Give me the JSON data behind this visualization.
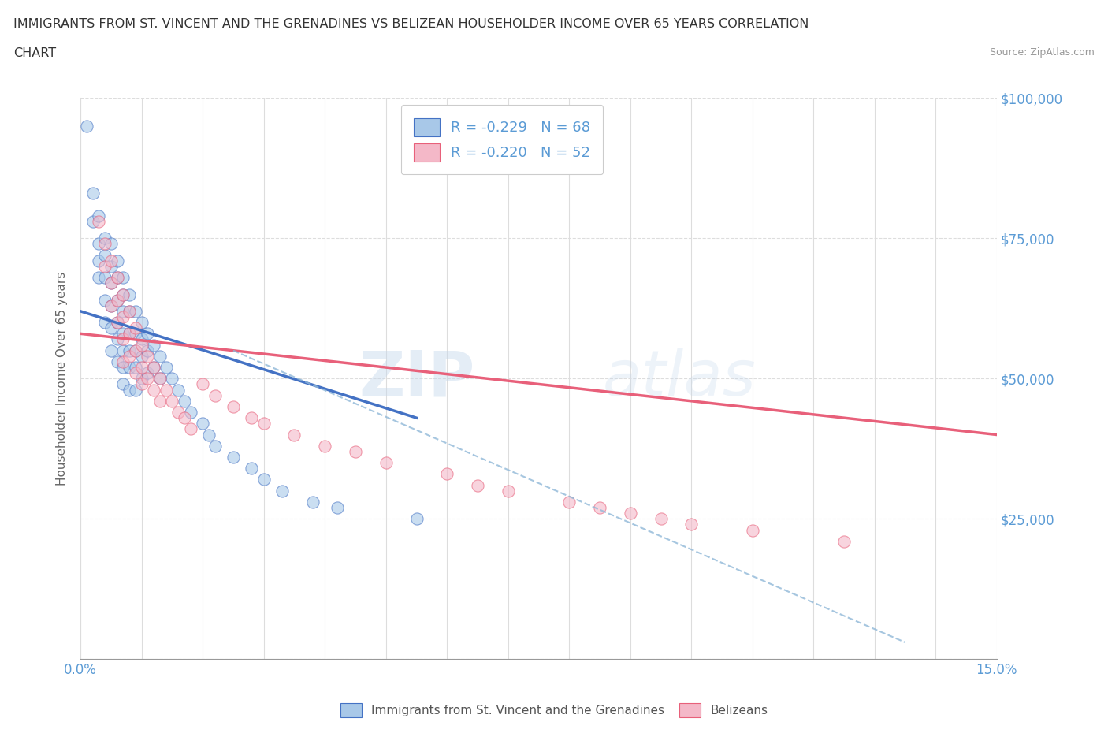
{
  "title_line1": "IMMIGRANTS FROM ST. VINCENT AND THE GRENADINES VS BELIZEAN HOUSEHOLDER INCOME OVER 65 YEARS CORRELATION",
  "title_line2": "CHART",
  "source_text": "Source: ZipAtlas.com",
  "ylabel": "Householder Income Over 65 years",
  "x_min": 0.0,
  "x_max": 0.15,
  "y_min": 0,
  "y_max": 100000,
  "y_ticks": [
    0,
    25000,
    50000,
    75000,
    100000
  ],
  "y_tick_labels_right": [
    "",
    "$25,000",
    "$50,000",
    "$75,000",
    "$100,000"
  ],
  "color_blue": "#a8c8e8",
  "color_blue_dark": "#4472c4",
  "color_pink": "#f4b8c8",
  "color_pink_dark": "#e8607a",
  "color_label_blue": "#5b9bd5",
  "watermark_zip": "ZIP",
  "watermark_atlas": "atlas",
  "blue_scatter_x": [
    0.001,
    0.002,
    0.002,
    0.003,
    0.003,
    0.003,
    0.003,
    0.004,
    0.004,
    0.004,
    0.004,
    0.004,
    0.005,
    0.005,
    0.005,
    0.005,
    0.005,
    0.005,
    0.006,
    0.006,
    0.006,
    0.006,
    0.006,
    0.006,
    0.007,
    0.007,
    0.007,
    0.007,
    0.007,
    0.007,
    0.007,
    0.008,
    0.008,
    0.008,
    0.008,
    0.008,
    0.008,
    0.009,
    0.009,
    0.009,
    0.009,
    0.009,
    0.01,
    0.01,
    0.01,
    0.01,
    0.011,
    0.011,
    0.011,
    0.012,
    0.012,
    0.013,
    0.013,
    0.014,
    0.015,
    0.016,
    0.017,
    0.018,
    0.02,
    0.021,
    0.022,
    0.025,
    0.028,
    0.03,
    0.033,
    0.038,
    0.042,
    0.055
  ],
  "blue_scatter_y": [
    95000,
    83000,
    78000,
    79000,
    74000,
    71000,
    68000,
    75000,
    72000,
    68000,
    64000,
    60000,
    74000,
    70000,
    67000,
    63000,
    59000,
    55000,
    71000,
    68000,
    64000,
    60000,
    57000,
    53000,
    68000,
    65000,
    62000,
    58000,
    55000,
    52000,
    49000,
    65000,
    62000,
    58000,
    55000,
    52000,
    48000,
    62000,
    58000,
    55000,
    52000,
    48000,
    60000,
    57000,
    54000,
    50000,
    58000,
    55000,
    51000,
    56000,
    52000,
    54000,
    50000,
    52000,
    50000,
    48000,
    46000,
    44000,
    42000,
    40000,
    38000,
    36000,
    34000,
    32000,
    30000,
    28000,
    27000,
    25000
  ],
  "pink_scatter_x": [
    0.003,
    0.004,
    0.004,
    0.005,
    0.005,
    0.005,
    0.006,
    0.006,
    0.006,
    0.007,
    0.007,
    0.007,
    0.007,
    0.008,
    0.008,
    0.008,
    0.009,
    0.009,
    0.009,
    0.01,
    0.01,
    0.01,
    0.011,
    0.011,
    0.012,
    0.012,
    0.013,
    0.013,
    0.014,
    0.015,
    0.016,
    0.017,
    0.018,
    0.02,
    0.022,
    0.025,
    0.028,
    0.03,
    0.035,
    0.04,
    0.045,
    0.05,
    0.06,
    0.065,
    0.07,
    0.08,
    0.085,
    0.09,
    0.095,
    0.1,
    0.11,
    0.125
  ],
  "pink_scatter_y": [
    78000,
    74000,
    70000,
    71000,
    67000,
    63000,
    68000,
    64000,
    60000,
    65000,
    61000,
    57000,
    53000,
    62000,
    58000,
    54000,
    59000,
    55000,
    51000,
    56000,
    52000,
    49000,
    54000,
    50000,
    52000,
    48000,
    50000,
    46000,
    48000,
    46000,
    44000,
    43000,
    41000,
    49000,
    47000,
    45000,
    43000,
    42000,
    40000,
    38000,
    37000,
    35000,
    33000,
    31000,
    30000,
    28000,
    27000,
    26000,
    25000,
    24000,
    23000,
    21000
  ],
  "blue_trend_x": [
    0.0,
    0.055
  ],
  "blue_trend_y": [
    62000,
    43000
  ],
  "pink_trend_x": [
    0.0,
    0.15
  ],
  "pink_trend_y": [
    58000,
    40000
  ],
  "dashed_trend_x": [
    0.025,
    0.135
  ],
  "dashed_trend_y": [
    55000,
    3000
  ],
  "background_color": "#ffffff",
  "grid_color": "#dddddd"
}
